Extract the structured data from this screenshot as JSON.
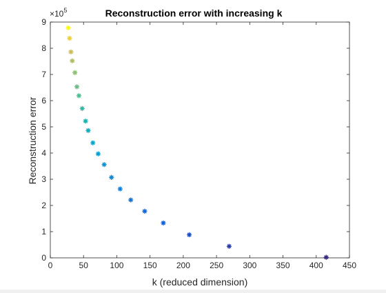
{
  "chart_data": {
    "type": "scatter",
    "title": "Reconstruction error with increasing k",
    "xlabel": "k (reduced dimension)",
    "ylabel": "Reconstruction error",
    "y_exponent_label": "×10",
    "y_exponent": "5",
    "xlim": [
      0,
      450
    ],
    "ylim": [
      0,
      900000
    ],
    "x_ticks": [
      0,
      50,
      100,
      150,
      200,
      250,
      300,
      350,
      400,
      450
    ],
    "y_ticks": [
      0,
      100000,
      200000,
      300000,
      400000,
      500000,
      600000,
      700000,
      800000,
      900000
    ],
    "x_tick_labels": [
      "0",
      "50",
      "100",
      "150",
      "200",
      "250",
      "300",
      "350",
      "400",
      "450"
    ],
    "y_tick_labels": [
      "0",
      "1",
      "2",
      "3",
      "4",
      "5",
      "6",
      "7",
      "8",
      "9"
    ],
    "grid": false,
    "marker": "*",
    "colormap": "parula",
    "points": [
      {
        "x": 27,
        "y": 878000
      },
      {
        "x": 29,
        "y": 838000
      },
      {
        "x": 31,
        "y": 786000
      },
      {
        "x": 33,
        "y": 752000
      },
      {
        "x": 37,
        "y": 707000
      },
      {
        "x": 40,
        "y": 653000
      },
      {
        "x": 43,
        "y": 619000
      },
      {
        "x": 48,
        "y": 570000
      },
      {
        "x": 53,
        "y": 522000
      },
      {
        "x": 57,
        "y": 486000
      },
      {
        "x": 64,
        "y": 439000
      },
      {
        "x": 72,
        "y": 397000
      },
      {
        "x": 81,
        "y": 356000
      },
      {
        "x": 92,
        "y": 307000
      },
      {
        "x": 105,
        "y": 263000
      },
      {
        "x": 121,
        "y": 221000
      },
      {
        "x": 142,
        "y": 178000
      },
      {
        "x": 170,
        "y": 133000
      },
      {
        "x": 209,
        "y": 88000
      },
      {
        "x": 269,
        "y": 44000
      },
      {
        "x": 415,
        "y": 2000
      }
    ]
  }
}
